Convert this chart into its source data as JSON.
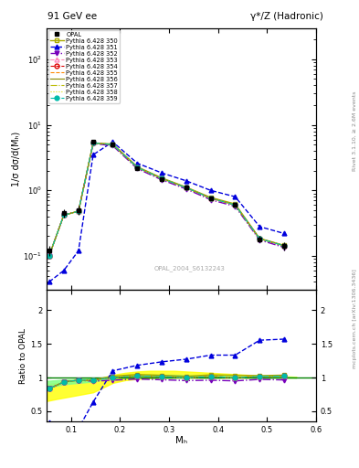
{
  "title_left": "91 GeV ee",
  "title_right": "γ*/Z (Hadronic)",
  "ylabel_main": "1/σ dσ/d(Mₕ)",
  "ylabel_ratio": "Ratio to OPAL",
  "xlabel": "Mₕ",
  "watermark": "OPAL_2004_S6132243",
  "right_label_top": "Rivet 3.1.10, ≥ 2.6M events",
  "right_label_bot": "mcplots.cern.ch [arXiv:1306.3436]",
  "x_opal": [
    0.055,
    0.085,
    0.115,
    0.145,
    0.185,
    0.235,
    0.285,
    0.335,
    0.385,
    0.435,
    0.485,
    0.535
  ],
  "y_opal": [
    0.12,
    0.45,
    0.5,
    5.5,
    5.0,
    2.2,
    1.5,
    1.1,
    0.75,
    0.6,
    0.18,
    0.14
  ],
  "yerr_opal": [
    0.02,
    0.07,
    0.08,
    0.4,
    0.3,
    0.15,
    0.1,
    0.08,
    0.05,
    0.04,
    0.02,
    0.02
  ],
  "x_mc": [
    0.055,
    0.085,
    0.115,
    0.145,
    0.185,
    0.235,
    0.285,
    0.335,
    0.385,
    0.435,
    0.485,
    0.535
  ],
  "y_350": [
    0.1,
    0.42,
    0.48,
    5.3,
    5.1,
    2.3,
    1.55,
    1.12,
    0.78,
    0.62,
    0.185,
    0.145
  ],
  "y_351": [
    0.04,
    0.06,
    0.12,
    3.5,
    5.5,
    2.6,
    1.85,
    1.4,
    1.0,
    0.8,
    0.28,
    0.22
  ],
  "y_352": [
    0.1,
    0.42,
    0.48,
    5.2,
    4.8,
    2.15,
    1.45,
    1.05,
    0.72,
    0.57,
    0.175,
    0.135
  ],
  "y_353": [
    0.1,
    0.42,
    0.48,
    5.3,
    5.0,
    2.25,
    1.52,
    1.1,
    0.76,
    0.6,
    0.183,
    0.143
  ],
  "y_354": [
    0.1,
    0.42,
    0.48,
    5.3,
    5.0,
    2.25,
    1.52,
    1.1,
    0.76,
    0.6,
    0.183,
    0.143
  ],
  "y_355": [
    0.1,
    0.42,
    0.48,
    5.3,
    5.0,
    2.25,
    1.52,
    1.1,
    0.76,
    0.6,
    0.183,
    0.143
  ],
  "y_356": [
    0.1,
    0.42,
    0.48,
    5.3,
    5.0,
    2.25,
    1.52,
    1.1,
    0.76,
    0.6,
    0.183,
    0.143
  ],
  "y_357": [
    0.1,
    0.42,
    0.48,
    5.3,
    5.0,
    2.25,
    1.52,
    1.1,
    0.76,
    0.6,
    0.183,
    0.143
  ],
  "y_358": [
    0.1,
    0.42,
    0.48,
    5.3,
    5.0,
    2.25,
    1.52,
    1.1,
    0.76,
    0.6,
    0.183,
    0.143
  ],
  "y_359": [
    0.1,
    0.42,
    0.48,
    5.3,
    5.0,
    2.25,
    1.52,
    1.1,
    0.76,
    0.6,
    0.183,
    0.143
  ],
  "color_350": "#aaaa00",
  "color_351": "#0000dd",
  "color_352": "#7700bb",
  "color_353": "#ff88bb",
  "color_354": "#dd0000",
  "color_355": "#ff8800",
  "color_356": "#888800",
  "color_357": "#bbbb00",
  "color_358": "#dddd00",
  "color_359": "#00bbaa",
  "xlim": [
    0.05,
    0.6
  ],
  "ylim_main": [
    0.03,
    300
  ],
  "ylim_ratio": [
    0.35,
    2.3
  ],
  "band_x": [
    0.05,
    0.07,
    0.085,
    0.1,
    0.115,
    0.13,
    0.145,
    0.165,
    0.185,
    0.21,
    0.235,
    0.26,
    0.285,
    0.31,
    0.335,
    0.36,
    0.385,
    0.41,
    0.435,
    0.46,
    0.485,
    0.51,
    0.535,
    0.56
  ],
  "band_y_lo": [
    0.65,
    0.68,
    0.7,
    0.72,
    0.74,
    0.76,
    0.78,
    0.85,
    0.92,
    0.96,
    0.98,
    0.99,
    1.0,
    1.0,
    1.0,
    1.0,
    1.0,
    1.0,
    1.0,
    1.0,
    1.0,
    1.0,
    1.0,
    1.0
  ],
  "band_y_hi": [
    0.9,
    0.92,
    0.93,
    0.94,
    0.95,
    0.96,
    0.97,
    1.0,
    1.04,
    1.07,
    1.09,
    1.1,
    1.1,
    1.1,
    1.09,
    1.08,
    1.07,
    1.06,
    1.05,
    1.04,
    1.03,
    1.02,
    1.02,
    1.01
  ],
  "band_g_lo": [
    0.85,
    0.88,
    0.9,
    0.91,
    0.92,
    0.93,
    0.94,
    0.97,
    0.99,
    1.0,
    1.0,
    1.0,
    1.0,
    1.0,
    1.0,
    1.0,
    1.0,
    1.0,
    1.0,
    1.0,
    1.0,
    1.0,
    1.0,
    1.0
  ],
  "band_g_hi": [
    0.95,
    0.96,
    0.97,
    0.97,
    0.98,
    0.98,
    0.99,
    1.0,
    1.01,
    1.02,
    1.03,
    1.04,
    1.04,
    1.04,
    1.03,
    1.03,
    1.02,
    1.02,
    1.02,
    1.01,
    1.01,
    1.01,
    1.01,
    1.0
  ]
}
